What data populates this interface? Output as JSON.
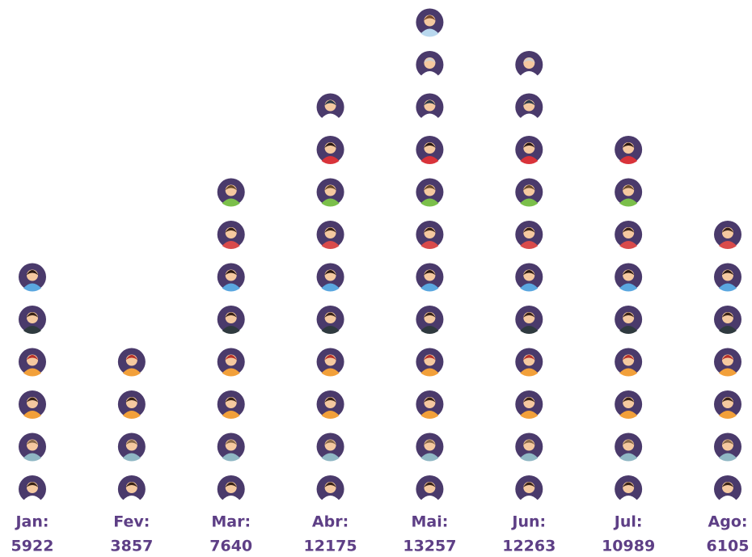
{
  "chart_data": {
    "type": "pictograph",
    "categories": [
      "Jan:",
      "Fev:",
      "Mar:",
      "Abr:",
      "Mai:",
      "Jun:",
      "Jul:",
      "Ago:"
    ],
    "values": [
      5922,
      3857,
      7640,
      12175,
      13257,
      12263,
      10989,
      6105
    ],
    "icon_counts": [
      6,
      4,
      8,
      10,
      12,
      11,
      9,
      7
    ],
    "color": "#4a3a6b"
  }
}
